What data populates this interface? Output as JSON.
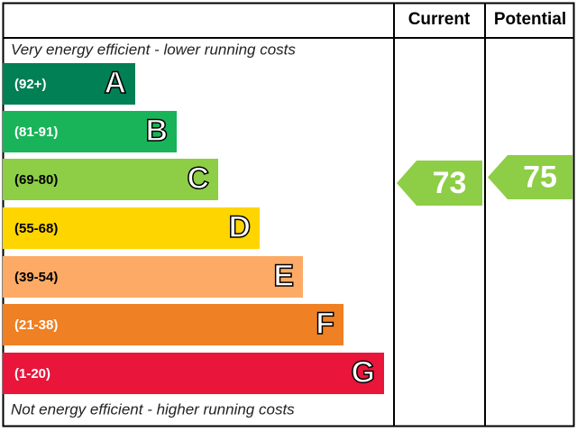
{
  "header": {
    "current": "Current",
    "potential": "Potential"
  },
  "top_note": "Very energy efficient - lower running costs",
  "bottom_note": "Not energy efficient - higher running costs",
  "bands": [
    {
      "range": "(92+)",
      "letter": "A",
      "color": "#008054"
    },
    {
      "range": "(81-91)",
      "letter": "B",
      "color": "#19b459"
    },
    {
      "range": "(69-80)",
      "letter": "C",
      "color": "#8dce46"
    },
    {
      "range": "(55-68)",
      "letter": "D",
      "color": "#ffd500"
    },
    {
      "range": "(39-54)",
      "letter": "E",
      "color": "#fcaa65"
    },
    {
      "range": "(21-38)",
      "letter": "F",
      "color": "#ef8023"
    },
    {
      "range": "(1-20)",
      "letter": "G",
      "color": "#e9153b"
    }
  ],
  "current": {
    "value": 73,
    "color": "#8dce46"
  },
  "potential": {
    "value": 75,
    "color": "#8dce46"
  }
}
